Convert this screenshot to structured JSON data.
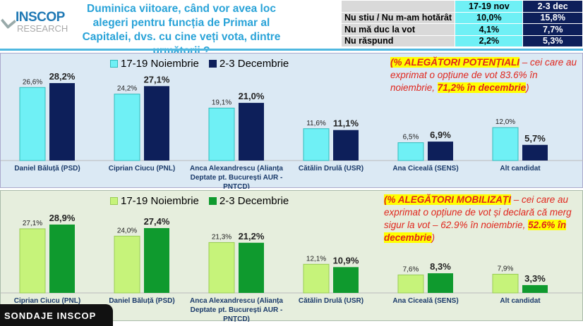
{
  "header": {
    "logo_top": "INSCOP",
    "logo_bottom": "RESEARCH",
    "question": "Duminica viitoare, când vor avea loc alegeri pentru funcția de Primar al Capitalei, dvs. cu cine veți vota, dintre următorii ?"
  },
  "side_table": {
    "headers": [
      "17-19 nov",
      "2-3 dec"
    ],
    "rows": [
      {
        "label": "Nu stiu / Nu m-am hotărât",
        "v1": "10,0%",
        "v2": "15,8%"
      },
      {
        "label": "Nu mă duc la vot",
        "v1": "4,1%",
        "v2": "7,7%"
      },
      {
        "label": "Nu răspund",
        "v1": "2,2%",
        "v2": "5,3%"
      }
    ]
  },
  "colors": {
    "p1_s1": "#6ff0f5",
    "p1_s2": "#0d1f5a",
    "p2_s1": "#c6f37a",
    "p2_s2": "#0f9a2e"
  },
  "note1": {
    "head": "(% ALEGĂTORI POTENȚIALI",
    "body": " – cei care au exprimat o opțiune de vot 83.6% în noiembrie, ",
    "hl": "71,2% în decembrie",
    "tail": ")"
  },
  "note2": {
    "head": "(% ALEGĂTORI MOBILIZAȚI",
    "body": " – cei care au exprimat o opțiune de vot și declară că merg sigur la vot – 62.9% în noiembrie, ",
    "hl": "52.6% în decembrie",
    "tail": ")"
  },
  "footer": {
    "badge": "SONDAJE INSCOP"
  },
  "chart_data": [
    {
      "type": "bar",
      "title": "Alegători potențiali",
      "categories": [
        "Daniel Băluță (PSD)",
        "Ciprian Ciucu (PNL)",
        "Anca Alexandrescu (Alianța Deptate pt. București AUR - PNȚCD)",
        "Cătălin Drulă (USR)",
        "Ana Ciceală (SENS)",
        "Alt candidat"
      ],
      "series": [
        {
          "name": "17-19 Noiembrie",
          "values": [
            26.6,
            24.2,
            19.1,
            11.6,
            6.5,
            12.0
          ],
          "labels": [
            "26,6%",
            "24,2%",
            "19,1%",
            "11,6%",
            "6,5%",
            "12,0%"
          ]
        },
        {
          "name": "2-3 Decembrie",
          "values": [
            28.2,
            27.1,
            21.0,
            11.1,
            6.9,
            5.7
          ],
          "labels": [
            "28,2%",
            "27,1%",
            "21,0%",
            "11,1%",
            "6,9%",
            "5,7%"
          ]
        }
      ],
      "ylim": [
        0,
        30
      ],
      "legend": "top-left"
    },
    {
      "type": "bar",
      "title": "Alegători mobilizați",
      "categories": [
        "Ciprian Ciucu (PNL)",
        "Daniel Băluță (PSD)",
        "Anca Alexandrescu (Alianța Deptate pt. București AUR - PNȚCD)",
        "Cătălin Drulă (USR)",
        "Ana Ciceală (SENS)",
        "Alt candidat"
      ],
      "series": [
        {
          "name": "17-19 Noiembrie",
          "values": [
            27.1,
            24.0,
            21.3,
            12.1,
            7.6,
            7.9
          ],
          "labels": [
            "27,1%",
            "24,0%",
            "21,3%",
            "12,1%",
            "7,6%",
            "7,9%"
          ]
        },
        {
          "name": "2-3 Decembrie",
          "values": [
            28.9,
            27.4,
            21.2,
            10.9,
            8.3,
            3.3
          ],
          "labels": [
            "28,9%",
            "27,4%",
            "21,2%",
            "10,9%",
            "8,3%",
            "3,3%"
          ]
        }
      ],
      "ylim": [
        0,
        30
      ],
      "legend": "top-left"
    }
  ]
}
